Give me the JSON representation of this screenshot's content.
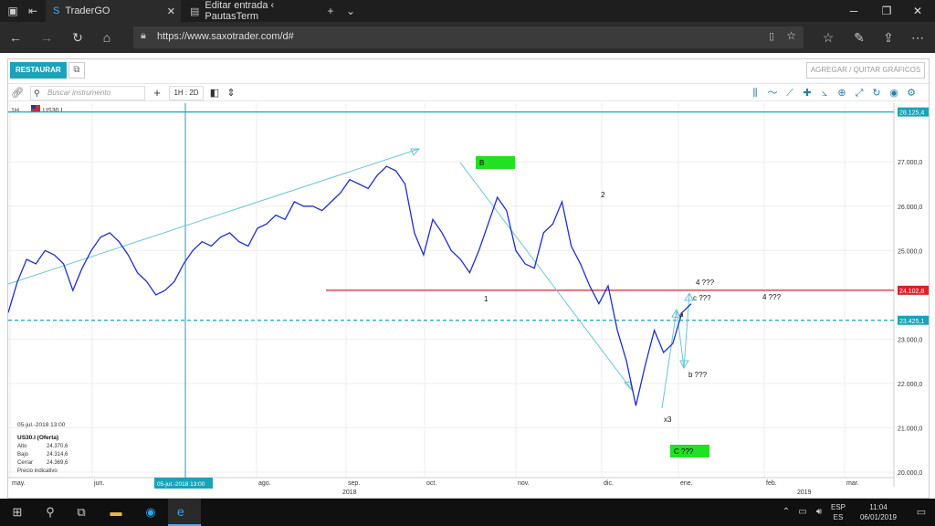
{
  "browser": {
    "tabs": [
      {
        "title": "TraderGO"
      },
      {
        "title": "Editar entrada ‹ PautasTerm"
      }
    ],
    "new_tab": "+",
    "url": "https://www.saxotrader.com/d#"
  },
  "app": {
    "restore_label": "RESTAURAR",
    "add_remove_charts_label": "AGREGAR / QUITAR GRÁFICOS",
    "search_placeholder": "Buscar instrumento",
    "timeframe_label": "1H : 2D"
  },
  "chart_data": {
    "type": "line",
    "instrument": "US30.I",
    "timeframe": "1H",
    "y_ticks": [
      "27.000,0",
      "26.000,0",
      "25.000,0",
      "23.000,0",
      "22.000,0",
      "21.000,0",
      "20.000,0"
    ],
    "ylim": [
      20000,
      28200
    ],
    "x_ticks": [
      "may.",
      "jun.",
      "ago.",
      "sep.",
      "oct.",
      "nov.",
      "dic.",
      "ene.",
      "feb.",
      "mar."
    ],
    "year_labels": [
      "2018",
      "2019"
    ],
    "series": [
      {
        "values": [
          23600,
          24300,
          24800,
          24700,
          25000,
          24900,
          24700,
          24100,
          24600,
          25000,
          25300,
          25400,
          25200,
          24900,
          24500,
          24300,
          24000,
          24100,
          24300,
          24700,
          25000,
          25200,
          25100,
          25300,
          25400,
          25200,
          25100,
          25500,
          25600,
          25800,
          25700,
          26100,
          26000,
          26000,
          25900,
          26100,
          26300,
          26600,
          26500,
          26400,
          26700,
          26900,
          26800,
          26500,
          25400,
          24900,
          25700,
          25400,
          25000,
          24800,
          24500,
          25000,
          25600,
          26200,
          25900,
          25000,
          24700,
          24600,
          25400,
          25600,
          26100,
          25100,
          24700,
          24200,
          23800,
          24200,
          23200,
          22500,
          21500,
          22400,
          23200,
          22700,
          22900,
          23600,
          23800
        ]
      }
    ],
    "horizontal_lines": [
      {
        "label": "28.125,4",
        "value": 28125.4,
        "color": "#1aa3b8",
        "style": "solid"
      },
      {
        "label": "24.102,8",
        "value": 24102.8,
        "color": "#e0202a",
        "style": "solid"
      },
      {
        "label": "23.425,1",
        "value": 23425.1,
        "color": "#1aa3b8",
        "style": "dashed"
      }
    ],
    "annotations": {
      "wave_labels": [
        "1",
        "2",
        "x3",
        "a",
        "b ???",
        "c ???",
        "4 ???",
        "4 ???"
      ],
      "boxes": [
        "B",
        "C ???"
      ]
    },
    "crosshair": {
      "date": "05-jul.-2018 13:00",
      "info_title": "US30.I (Oferta)",
      "rows": [
        {
          "label": "Alto",
          "value": "24.370,6"
        },
        {
          "label": "Bajo",
          "value": "24.314,6"
        },
        {
          "label": "Cerrar",
          "value": "24.369,6"
        }
      ],
      "note": "Precio indicativo"
    }
  },
  "taskbar": {
    "lang_top": "ESP",
    "lang_bottom": "ES",
    "time": "11:04",
    "date": "06/01/2019"
  },
  "colors": {
    "accent": "#1aa3b8",
    "series": "#1f2fd0",
    "resistance": "#e0202a",
    "annotation_box": "#22e022"
  }
}
